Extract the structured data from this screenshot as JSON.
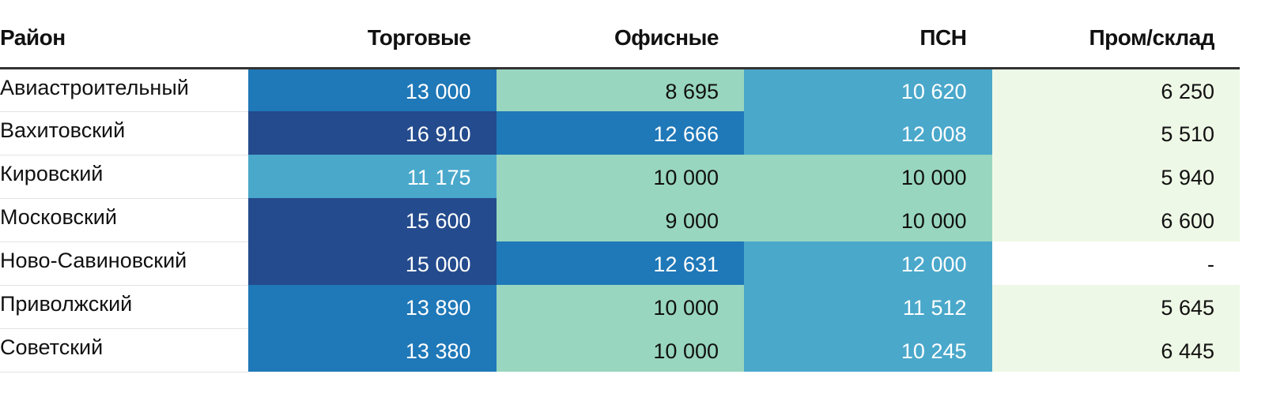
{
  "chart_data": {
    "type": "table",
    "columns": [
      "Район",
      "Торговые",
      "Офисные",
      "ПСН",
      "Пром/склад"
    ],
    "rows": [
      {
        "name": "Авиастроительный",
        "values": [
          "13 000",
          "8 695",
          "10 620",
          "6 250"
        ]
      },
      {
        "name": "Вахитовский",
        "values": [
          "16 910",
          "12 666",
          "12 008",
          "5 510"
        ]
      },
      {
        "name": "Кировский",
        "values": [
          "11 175",
          "10 000",
          "10 000",
          "5 940"
        ]
      },
      {
        "name": "Московский",
        "values": [
          "15 600",
          "9 000",
          "10 000",
          "6 600"
        ]
      },
      {
        "name": "Ново-Савиновский",
        "values": [
          "15 000",
          "12 631",
          "12 000",
          "-"
        ]
      },
      {
        "name": "Приволжский",
        "values": [
          "13 890",
          "10 000",
          "11 512",
          "5 645"
        ]
      },
      {
        "name": "Советский",
        "values": [
          "13 380",
          "10 000",
          "10 245",
          "6 445"
        ]
      }
    ],
    "palette": {
      "none": "#ffffff",
      "lightest": "#eef8e6",
      "light": "#98d6c0",
      "medium": "#4aa8cb",
      "dark": "#1f78b8",
      "darkest": "#244b8d"
    },
    "thresholds": [
      7000,
      10100,
      12200,
      15000
    ],
    "text_colors": {
      "light_bg": "#111111",
      "dark_bg": "#ffffff"
    }
  }
}
